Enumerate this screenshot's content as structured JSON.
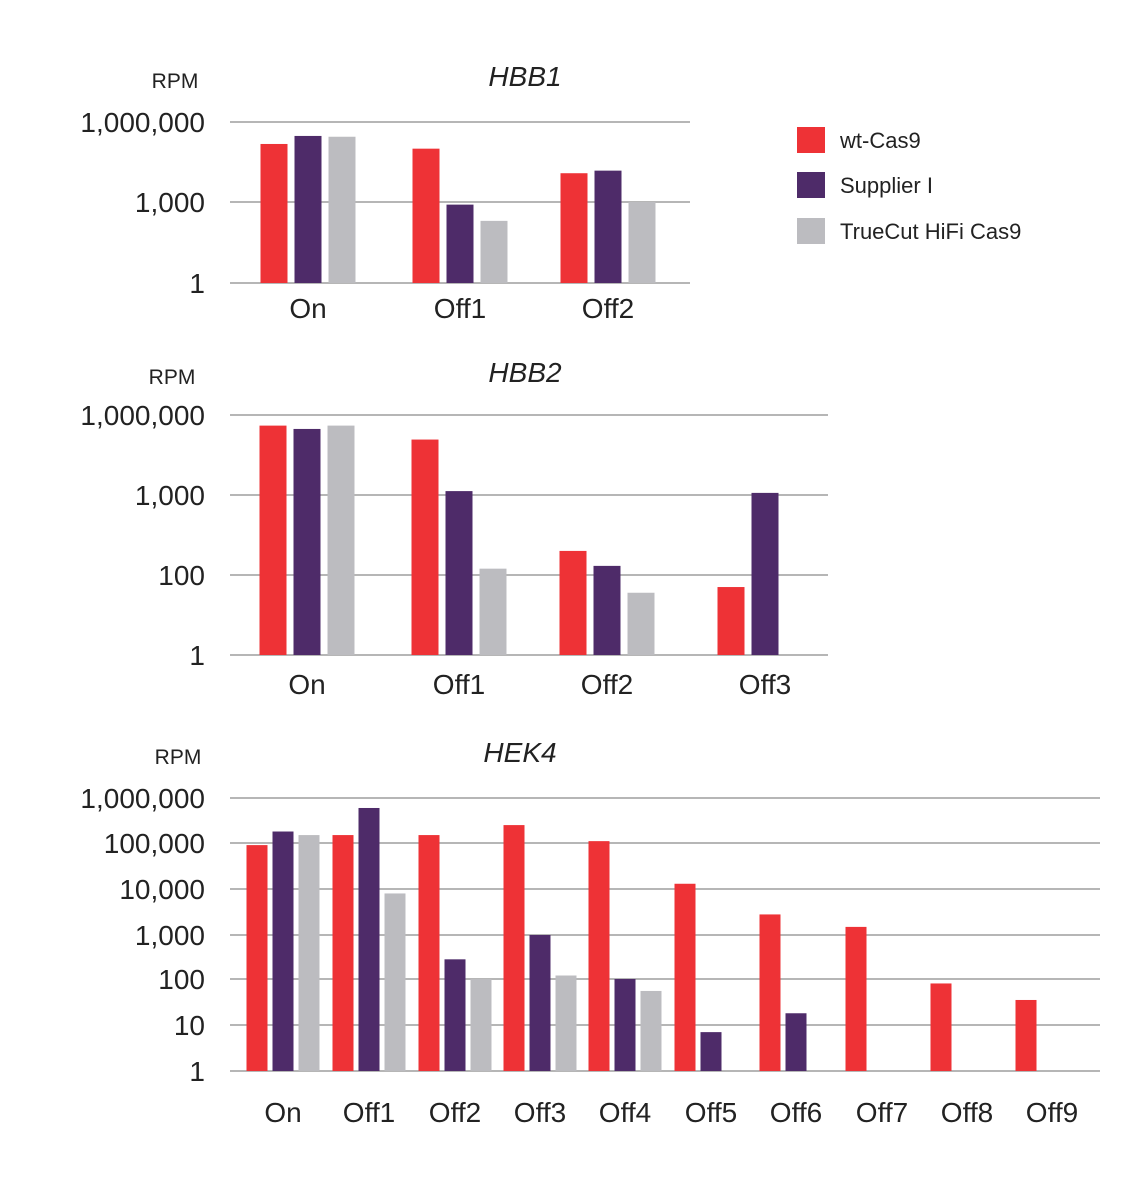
{
  "legend": [
    {
      "name": "wt-Cas9",
      "color": "#ee3236"
    },
    {
      "name": "Supplier I",
      "color": "#4e2b69"
    },
    {
      "name": "TrueCut HiFi Cas9",
      "color": "#bcbcc0"
    }
  ],
  "chart_data": [
    {
      "type": "bar",
      "title": "HBB1",
      "ylabel": "RPM",
      "yscale": "log",
      "yticks": [
        1,
        1000,
        1000000
      ],
      "ytick_labels": [
        "1",
        "1,000",
        "1,000,000"
      ],
      "categories": [
        "On",
        "Off1",
        "Off2"
      ],
      "series": [
        {
          "name": "wt-Cas9",
          "values": [
            150000,
            100000,
            12000
          ]
        },
        {
          "name": "Supplier I",
          "values": [
            300000,
            800,
            15000
          ]
        },
        {
          "name": "TrueCut HiFi Cas9",
          "values": [
            280000,
            200,
            1000
          ]
        }
      ]
    },
    {
      "type": "bar",
      "title": "HBB2",
      "ylabel": "RPM",
      "yscale": "log",
      "yticks": [
        1,
        100,
        1000,
        1000000
      ],
      "ytick_labels": [
        "1",
        "100",
        "1,000",
        "1,000,000"
      ],
      "categories": [
        "On",
        "Off1",
        "Off2",
        "Off3"
      ],
      "series": [
        {
          "name": "wt-Cas9",
          "values": [
            400000,
            120000,
            200,
            50
          ]
        },
        {
          "name": "Supplier I",
          "values": [
            300000,
            1400,
            130,
            1200
          ]
        },
        {
          "name": "TrueCut HiFi Cas9",
          "values": [
            400000,
            120,
            36,
            null
          ]
        }
      ]
    },
    {
      "type": "bar",
      "title": "HEK4",
      "ylabel": "RPM",
      "yscale": "log",
      "yticks": [
        1,
        10,
        100,
        1000,
        10000,
        100000,
        1000000
      ],
      "ytick_labels": [
        "1",
        "10",
        "100",
        "1,000",
        "10,000",
        "100,000",
        "1,000,000"
      ],
      "categories": [
        "On",
        "Off1",
        "Off2",
        "Off3",
        "Off4",
        "Off5",
        "Off6",
        "Off7",
        "Off8",
        "Off9"
      ],
      "series": [
        {
          "name": "wt-Cas9",
          "values": [
            90000,
            150000,
            150000,
            250000,
            110000,
            13000,
            2800,
            1500,
            80,
            35
          ]
        },
        {
          "name": "Supplier I",
          "values": [
            180000,
            600000,
            280,
            1000,
            100,
            7,
            18,
            null,
            null,
            null
          ]
        },
        {
          "name": "TrueCut HiFi Cas9",
          "values": [
            150000,
            8000,
            100,
            120,
            55,
            null,
            null,
            null,
            null,
            null
          ]
        }
      ]
    }
  ]
}
